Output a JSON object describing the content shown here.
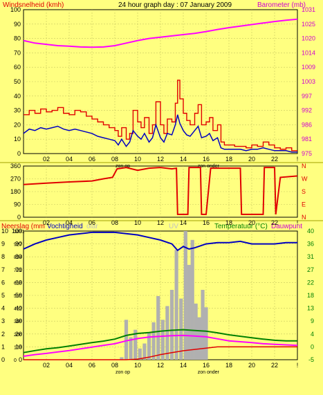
{
  "header": {
    "title": "24 hour graph day : 07 January 2009",
    "left_label": "Windsnelheid (kmh)",
    "right_label": "Barometer (mb)"
  },
  "colors": {
    "background": "#ffff80",
    "wind_gust": "#e00000",
    "wind_avg": "#0000c0",
    "barometer": "#ff00ff",
    "direction": "#e00000",
    "humidity": "#0000c0",
    "temperature": "#008000",
    "dewpoint": "#ff00ff",
    "rain": "#e00000",
    "solar": "#b0b0b0",
    "right_axis_text": "#d000d0",
    "bottom_right_axis_text": "#008000"
  },
  "x_labels": [
    "02",
    "04",
    "06",
    "08",
    "10",
    "12",
    "14",
    "16",
    "18",
    "20",
    "22",
    "!"
  ],
  "sun_labels": {
    "sunrise": "zon op",
    "sunset": "zon onder"
  },
  "chart_data": [
    {
      "id": "wind-barometer",
      "type": "line",
      "xlim": [
        0,
        24
      ],
      "ylim": [
        0,
        100
      ],
      "y_ticks": [
        "100",
        "90",
        "80",
        "70",
        "60",
        "50",
        "40",
        "30",
        "20",
        "10",
        "0"
      ],
      "y2_ticks": [
        "1031",
        "1025",
        "1020",
        "1014",
        "1009",
        "1003",
        "997",
        "992",
        "986",
        "981",
        "975"
      ],
      "ylim2": [
        975,
        1031
      ],
      "series": [
        {
          "role": "gust",
          "x": [
            0,
            0.5,
            1,
            1.5,
            2,
            2.5,
            3,
            3.5,
            4,
            4.5,
            5,
            5.5,
            6,
            6.5,
            7,
            7.5,
            8,
            8.3,
            8.6,
            9,
            9.3,
            9.6,
            10,
            10.3,
            10.6,
            11,
            11.3,
            11.6,
            12,
            12.3,
            12.6,
            13,
            13.3,
            13.5,
            13.7,
            14,
            14.3,
            14.6,
            15,
            15.3,
            15.6,
            16,
            16.3,
            16.6,
            17,
            17.3,
            17.6,
            18,
            18.5,
            19,
            19.5,
            20,
            20.5,
            21,
            21.5,
            22,
            22.5,
            23,
            23.5,
            24
          ],
          "y": [
            27,
            30,
            28,
            31,
            29,
            30,
            32,
            28,
            27,
            30,
            29,
            26,
            24,
            22,
            20,
            18,
            16,
            12,
            18,
            10,
            14,
            30,
            22,
            18,
            25,
            14,
            20,
            36,
            20,
            14,
            24,
            22,
            35,
            51,
            38,
            28,
            23,
            20,
            28,
            34,
            20,
            22,
            25,
            16,
            20,
            8,
            6,
            6,
            5,
            5,
            4,
            6,
            5,
            8,
            6,
            4,
            3,
            4,
            2,
            2
          ]
        },
        {
          "role": "average",
          "x": [
            0,
            0.5,
            1,
            1.5,
            2,
            2.5,
            3,
            3.5,
            4,
            4.5,
            5,
            5.5,
            6,
            6.5,
            7,
            7.5,
            8,
            8.3,
            8.6,
            9,
            9.3,
            9.6,
            10,
            10.3,
            10.6,
            11,
            11.3,
            11.6,
            12,
            12.3,
            12.6,
            13,
            13.3,
            13.5,
            13.7,
            14,
            14.3,
            14.6,
            15,
            15.3,
            15.6,
            16,
            16.3,
            16.6,
            17,
            17.3,
            17.6,
            18,
            18.5,
            19,
            19.5,
            20,
            20.5,
            21,
            21.5,
            22,
            22.5,
            23,
            23.5,
            24
          ],
          "y": [
            14,
            17,
            16,
            18,
            17,
            18,
            19,
            17,
            16,
            17,
            16,
            15,
            14,
            12,
            11,
            10,
            9,
            6,
            10,
            5,
            8,
            16,
            12,
            10,
            14,
            8,
            11,
            20,
            11,
            8,
            14,
            13,
            20,
            27,
            21,
            16,
            13,
            12,
            16,
            19,
            11,
            12,
            14,
            9,
            11,
            4,
            3,
            3,
            3,
            3,
            2,
            3,
            3,
            4,
            3,
            2,
            2,
            2,
            1,
            1
          ]
        },
        {
          "role": "barometer",
          "axis": "right",
          "x": [
            0,
            1,
            2,
            3,
            4,
            5,
            6,
            7,
            8,
            9,
            10,
            11,
            12,
            13,
            14,
            15,
            16,
            17,
            18,
            19,
            20,
            21,
            22,
            23,
            24
          ],
          "y": [
            1019,
            1018,
            1017.5,
            1017,
            1016.8,
            1016.5,
            1016.4,
            1016.5,
            1017,
            1018,
            1019,
            1019.8,
            1020.3,
            1020.8,
            1021.3,
            1021.8,
            1022.5,
            1023.3,
            1024,
            1024.6,
            1025.2,
            1025.8,
            1026.4,
            1026.9,
            1027.3
          ]
        }
      ]
    },
    {
      "id": "wind-direction",
      "type": "line",
      "xlim": [
        0,
        24
      ],
      "ylim": [
        0,
        360
      ],
      "y_ticks": [
        "360",
        "270",
        "180",
        "90",
        "0"
      ],
      "y2_ticks": [
        "N",
        "W",
        "S",
        "E",
        "N"
      ],
      "series": [
        {
          "role": "direction",
          "x": [
            0,
            2,
            4,
            6,
            7,
            7.8,
            8.2,
            9,
            10,
            11,
            12,
            13,
            13.4,
            13.5,
            14.4,
            14.5,
            15.5,
            15.6,
            16,
            16.4,
            19,
            19.1,
            21,
            21.1,
            22,
            22.1,
            22.5,
            24
          ],
          "y": [
            230,
            240,
            248,
            255,
            270,
            280,
            340,
            350,
            330,
            345,
            350,
            340,
            345,
            20,
            20,
            350,
            350,
            20,
            20,
            345,
            345,
            20,
            20,
            350,
            350,
            20,
            280,
            290
          ]
        }
      ]
    },
    {
      "id": "rain-humidity-temperature",
      "type": "line",
      "xlim": [
        0,
        24
      ],
      "header_labels": [
        "Neerslag (mm",
        "Vochtigheid",
        "olar",
        "UV",
        "Temperatuur (°C)",
        "Dauwpunt"
      ],
      "y_ticks_rain": [
        "10",
        "9",
        "8",
        "7",
        "6",
        "5",
        "4",
        "3",
        "2",
        "1",
        "0"
      ],
      "y_ticks_humidity": [
        "100",
        "90",
        "80",
        "70",
        "60",
        "50",
        "40",
        "30",
        "20",
        "10",
        "0"
      ],
      "y_ticks_solar": [
        "1031",
        "927",
        "824",
        "721",
        "618",
        "515",
        "412",
        "309",
        "206",
        "103",
        "0"
      ],
      "y_ticks_temp": [
        "40",
        "36",
        "31",
        "27",
        "22",
        "18",
        "13",
        "9",
        "4",
        "0",
        "-5"
      ],
      "ylim_humidity": [
        0,
        100
      ],
      "ylim_temp": [
        -5,
        40
      ],
      "series": [
        {
          "role": "humidity",
          "x": [
            0,
            1,
            2,
            3,
            4,
            5,
            6,
            7,
            8,
            9,
            10,
            11,
            12,
            13,
            13.5,
            14,
            14.5,
            15,
            16,
            17,
            18,
            19,
            20,
            21,
            22,
            23,
            24
          ],
          "y": [
            86,
            90,
            93,
            95,
            97,
            98,
            99,
            99,
            99,
            98,
            97,
            95,
            93,
            90,
            85,
            88,
            86,
            87,
            90,
            91,
            91,
            92,
            90,
            90,
            90,
            91,
            91
          ]
        },
        {
          "role": "temperature",
          "axis": "temp",
          "x": [
            0,
            1,
            2,
            3,
            4,
            5,
            6,
            7,
            8,
            9,
            10,
            11,
            12,
            13,
            14,
            15,
            16,
            17,
            18,
            19,
            20,
            21,
            22,
            23,
            24
          ],
          "y": [
            -2.5,
            -1.8,
            -1.2,
            -0.8,
            -0.2,
            0.4,
            1.0,
            1.5,
            2.2,
            3.5,
            4.2,
            4.5,
            5.0,
            5.3,
            5.5,
            5.2,
            5.0,
            4.4,
            3.7,
            3.2,
            2.7,
            2.2,
            1.8,
            1.6,
            1.6
          ]
        },
        {
          "role": "dewpoint",
          "axis": "temp",
          "x": [
            0,
            1,
            2,
            3,
            4,
            5,
            6,
            7,
            8,
            9,
            10,
            11,
            12,
            13,
            14,
            15,
            16,
            17,
            18,
            19,
            20,
            21,
            22,
            23,
            24
          ],
          "y": [
            -3.8,
            -3.2,
            -2.8,
            -2.3,
            -1.8,
            -1.2,
            -0.6,
            0.0,
            0.6,
            1.6,
            2.4,
            2.9,
            3.2,
            3.4,
            3.5,
            3.3,
            3.0,
            2.3,
            1.6,
            1.3,
            1.0,
            0.6,
            0.4,
            0.2,
            0.0
          ]
        },
        {
          "role": "rain",
          "axis": "rain",
          "x": [
            0,
            4,
            8,
            9,
            10,
            11,
            12,
            13,
            14,
            15,
            16,
            17,
            18,
            20,
            22,
            24
          ],
          "y": [
            0,
            0,
            0,
            0,
            0.05,
            0.2,
            0.4,
            0.55,
            0.7,
            0.8,
            0.9,
            1.0,
            1.0,
            1.0,
            1.0,
            1.0
          ]
        },
        {
          "role": "solar",
          "axis": "solar",
          "type": "bar",
          "x": [
            8.6,
            9,
            9.4,
            9.8,
            10.2,
            10.6,
            11,
            11.4,
            11.8,
            12.2,
            12.6,
            13,
            13.4,
            13.8,
            14.2,
            14.5,
            14.8,
            15.1,
            15.4,
            15.7,
            16
          ],
          "y": [
            20,
            320,
            180,
            240,
            90,
            130,
            220,
            300,
            510,
            320,
            430,
            560,
            880,
            490,
            1031,
            760,
            960,
            450,
            340,
            560,
            420
          ]
        }
      ]
    }
  ]
}
